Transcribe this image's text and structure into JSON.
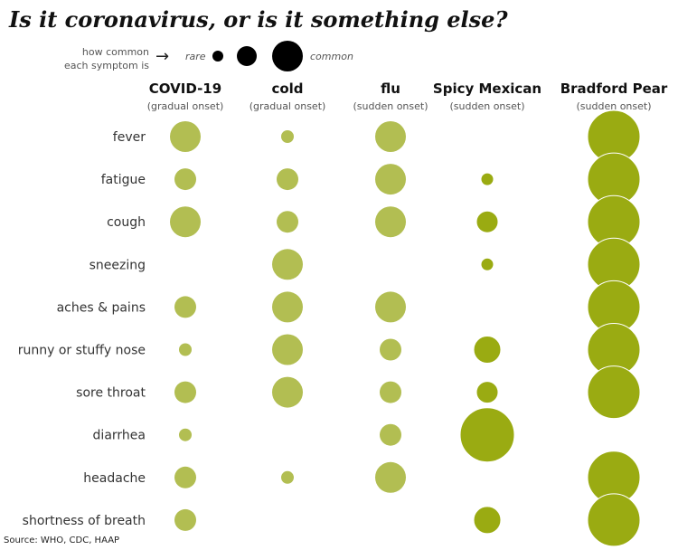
{
  "title": "Is it coronavirus, or is it something else?",
  "legend": {
    "label_line1": "how common",
    "label_line2": "each symptom is",
    "arrow": "→",
    "rare": "rare",
    "common": "common"
  },
  "source": "Source: WHO, CDC, HAAP",
  "colors": {
    "dot_light": "#b2be52",
    "dot_dark": "#9aab12",
    "dot_dark_stroke": "#ffffff",
    "legend_dot": "#000000"
  },
  "chart_data": {
    "type": "bubble-matrix",
    "value_scale": "0 = not reported, 1 = rare, 2, 3, 4 = common, 5 = extremely common",
    "columns": [
      {
        "name": "COVID-19",
        "onset": "(gradual onset)",
        "color": "light"
      },
      {
        "name": "cold",
        "onset": "(gradual onset)",
        "color": "light"
      },
      {
        "name": "flu",
        "onset": "(sudden onset)",
        "color": "light"
      },
      {
        "name": "Spicy Mexican",
        "onset": "(sudden onset)",
        "color": "dark"
      },
      {
        "name": "Bradford Pear",
        "onset": "(sudden onset)",
        "color": "dark"
      }
    ],
    "rows": [
      "fever",
      "fatigue",
      "cough",
      "sneezing",
      "aches & pains",
      "runny or stuffy nose",
      "sore throat",
      "diarrhea",
      "headache",
      "shortness of breath"
    ],
    "values": [
      [
        4,
        1,
        4,
        0,
        5
      ],
      [
        2,
        2,
        4,
        1,
        5
      ],
      [
        4,
        2,
        4,
        2,
        5
      ],
      [
        0,
        4,
        0,
        1,
        5
      ],
      [
        2,
        4,
        4,
        0,
        5
      ],
      [
        1,
        4,
        2,
        3,
        5
      ],
      [
        2,
        4,
        2,
        2,
        5
      ],
      [
        1,
        0,
        2,
        6,
        0
      ],
      [
        2,
        1,
        4,
        0,
        5
      ],
      [
        2,
        0,
        0,
        3,
        5
      ]
    ]
  }
}
